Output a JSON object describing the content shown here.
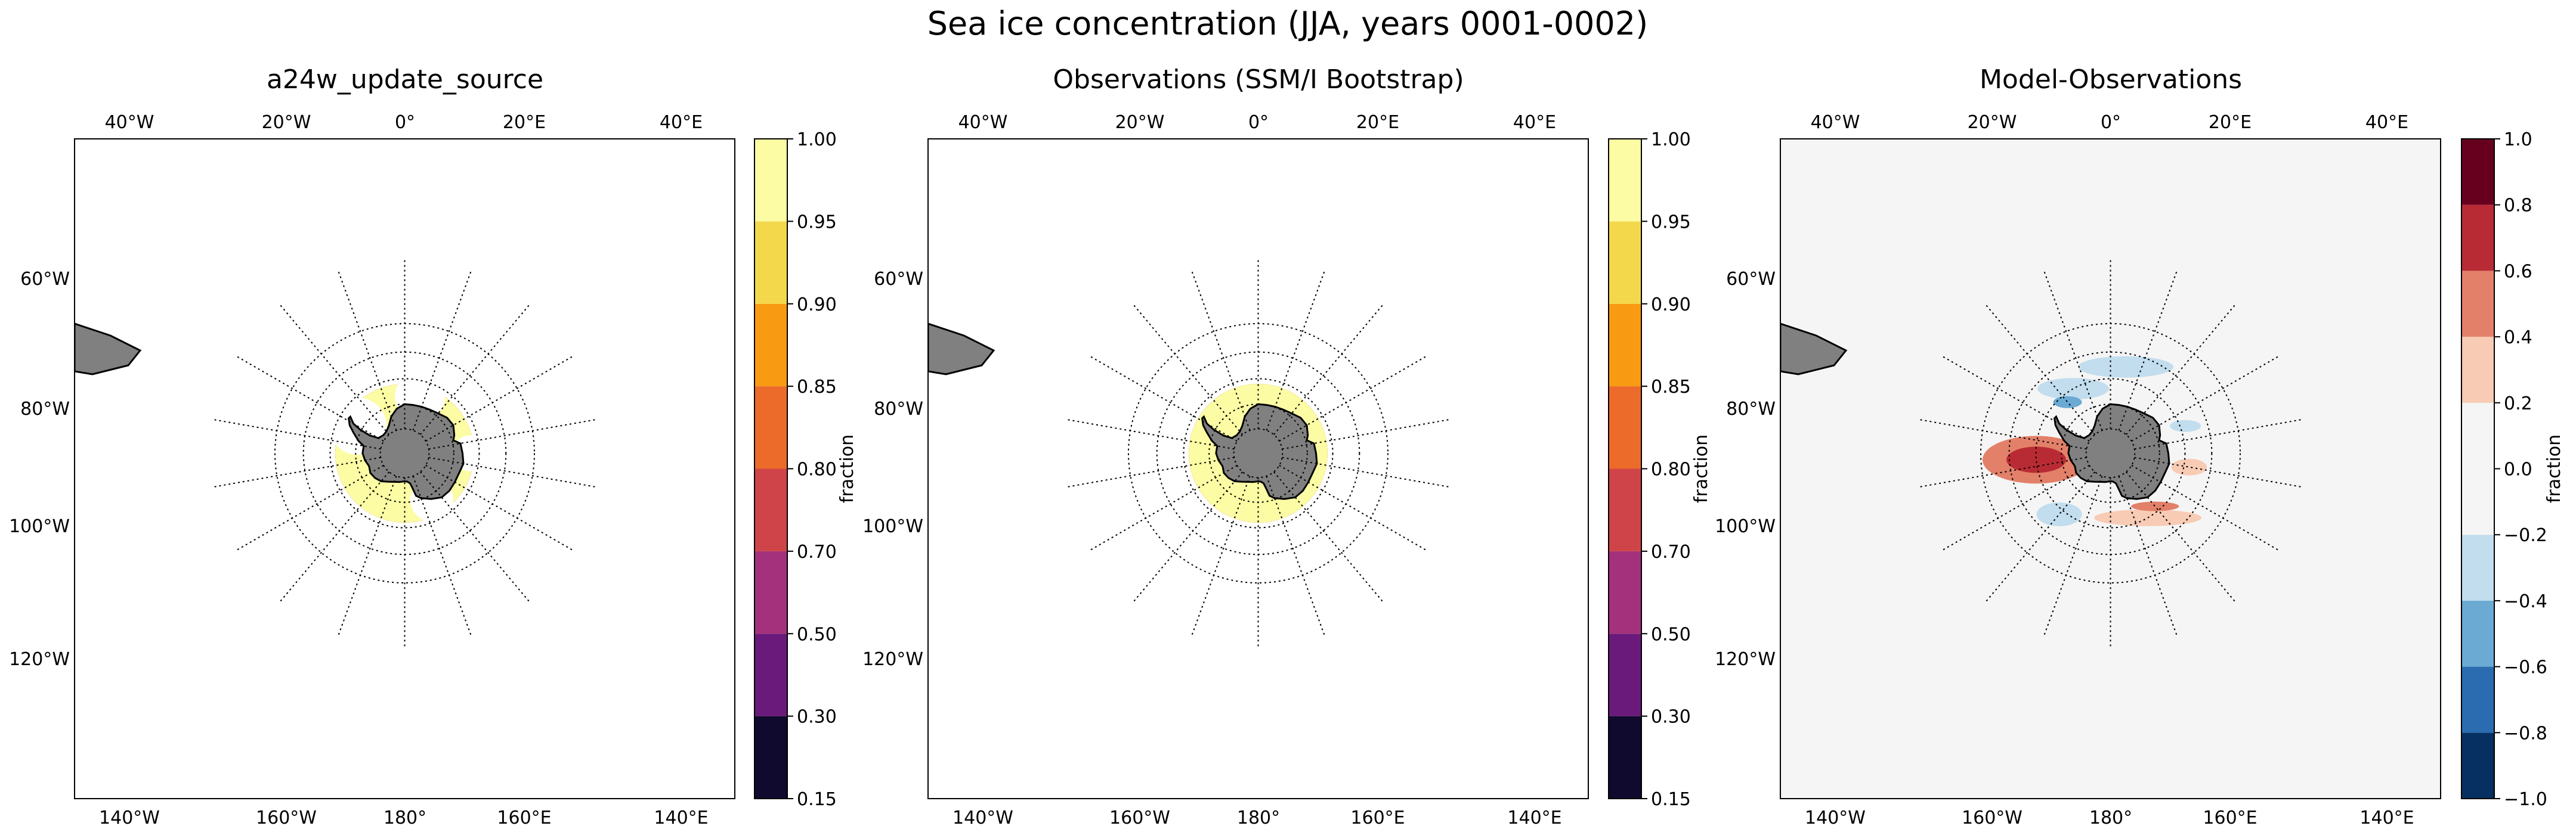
{
  "suptitle": "Sea ice concentration (JJA, years 0001-0002)",
  "panel_titles": [
    "a24w_update_source",
    "Observations (SSM/I Bootstrap)",
    "Model-Observations"
  ],
  "map_labels": {
    "top": [
      "40°W",
      "20°W",
      "0°",
      "20°E",
      "40°E"
    ],
    "bottom": [
      "140°W",
      "160°W",
      "180°",
      "160°E",
      "140°E"
    ],
    "left": [
      "60°W",
      "80°W",
      "100°W",
      "120°W"
    ]
  },
  "chart_data": [
    {
      "type": "heatmap",
      "title": "a24w_update_source",
      "projection": "south polar stereographic",
      "colorbar": {
        "label": "fraction",
        "levels": [
          0.15,
          0.3,
          0.5,
          0.7,
          0.8,
          0.85,
          0.9,
          0.95,
          1.0
        ],
        "tick_labels": [
          "0.15",
          "0.30",
          "0.50",
          "0.70",
          "0.80",
          "0.85",
          "0.90",
          "0.95",
          "1.00"
        ],
        "colors": [
          "#0f0a2e",
          "#6a1a7a",
          "#a3317b",
          "#cf4448",
          "#ec6a2a",
          "#f89a12",
          "#f3d84b",
          "#fcfca4"
        ]
      },
      "land_color": "#808080",
      "ice_edge_lat_approx": -58
    },
    {
      "type": "heatmap",
      "title": "Observations (SSM/I Bootstrap)",
      "projection": "south polar stereographic",
      "colorbar": {
        "label": "fraction",
        "levels": [
          0.15,
          0.3,
          0.5,
          0.7,
          0.8,
          0.85,
          0.9,
          0.95,
          1.0
        ],
        "tick_labels": [
          "0.15",
          "0.30",
          "0.50",
          "0.70",
          "0.80",
          "0.85",
          "0.90",
          "0.95",
          "1.00"
        ],
        "colors": [
          "#0f0a2e",
          "#6a1a7a",
          "#a3317b",
          "#cf4448",
          "#ec6a2a",
          "#f89a12",
          "#f3d84b",
          "#fcfca4"
        ]
      },
      "land_color": "#808080",
      "ice_edge_lat_approx": -58
    },
    {
      "type": "heatmap",
      "title": "Model-Observations",
      "projection": "south polar stereographic",
      "colorbar": {
        "label": "fraction",
        "levels": [
          -1.0,
          -0.8,
          -0.6,
          -0.4,
          -0.2,
          0.2,
          0.4,
          0.6,
          0.8,
          1.0
        ],
        "tick_labels": [
          "−1.0",
          "−0.8",
          "−0.6",
          "−0.4",
          "−0.2",
          "0.0",
          "0.2",
          "0.4",
          "0.6",
          "0.8",
          "1.0"
        ],
        "tick_values": [
          -1.0,
          -0.8,
          -0.6,
          -0.4,
          -0.2,
          0.0,
          0.2,
          0.4,
          0.6,
          0.8,
          1.0
        ],
        "colors": [
          "#053061",
          "#2b6cb0",
          "#6aaad3",
          "#c2ddee",
          "#f5f5f5",
          "#f8cbb5",
          "#e38069",
          "#b92b34",
          "#67001f"
        ]
      },
      "land_color": "#808080",
      "background_color": "#f5f5f5"
    }
  ]
}
